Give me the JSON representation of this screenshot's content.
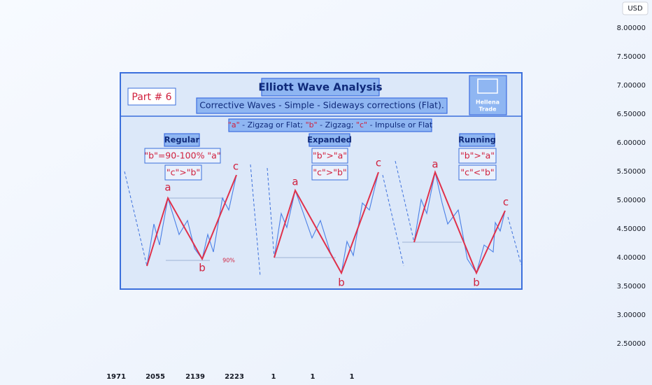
{
  "currency": "USD",
  "price_axis": [
    "8.00000",
    "7.50000",
    "7.00000",
    "6.50000",
    "6.00000",
    "5.50000",
    "5.00000",
    "4.50000",
    "4.00000",
    "3.50000",
    "3.00000",
    "2.50000"
  ],
  "time_axis": [
    "1971",
    "2055",
    "2139",
    "2223",
    "1",
    "1",
    "1"
  ],
  "panel": {
    "part": "Part # 6",
    "title": "Elliott Wave Analysis",
    "subtitle": "Corrective Waves - Simple - Sideways corrections (Flat).",
    "logo": [
      "Hellena",
      "Trade"
    ],
    "legend": [
      "\"a\"",
      " - Zigzag or Flat; ",
      "\"b\"",
      " - Zigzag; ",
      "\"c\"",
      " - Impulse or Flat"
    ]
  },
  "patterns": [
    {
      "name": "Regular",
      "rules": [
        "\"b\"=90-100% \"a\"",
        "\"c\">\"b\""
      ],
      "labels": [
        "a",
        "b",
        "c"
      ],
      "note": "90%"
    },
    {
      "name": "Expanded",
      "rules": [
        "\"b\">\"a\"",
        "\"c\">\"b\""
      ],
      "labels": [
        "a",
        "b",
        "c"
      ]
    },
    {
      "name": "Running",
      "rules": [
        "\"b\">\"a\"",
        "\"c\"<\"b\""
      ],
      "labels": [
        "a",
        "b",
        "c"
      ]
    }
  ]
}
